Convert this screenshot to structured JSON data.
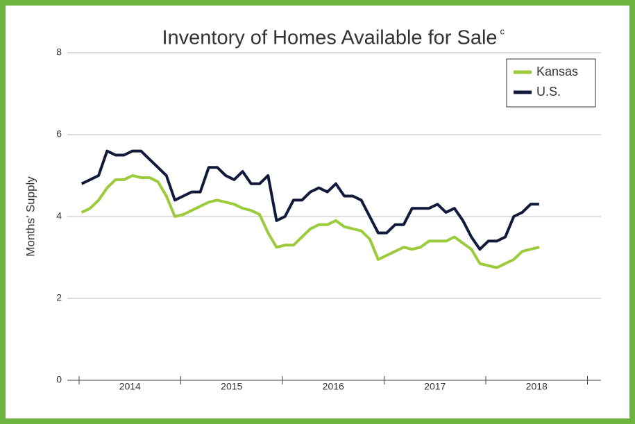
{
  "chart_data": {
    "type": "line",
    "title": "Inventory of Homes Available for Sale",
    "title_note": "c",
    "y_label": "Months’ Supply",
    "categories": [
      null,
      null,
      null,
      null,
      null,
      null,
      null,
      null,
      null,
      null,
      null,
      null,
      null,
      null,
      null,
      null,
      null,
      null,
      null,
      null,
      null,
      null,
      null,
      null,
      null,
      null,
      null,
      null,
      null,
      null,
      null,
      null,
      null,
      null,
      null,
      null,
      null,
      null,
      null,
      null,
      null,
      null,
      null,
      null,
      null,
      null,
      null,
      null,
      null,
      null,
      null,
      null,
      null,
      null,
      null
    ],
    "year_labels": [
      "2014",
      "2015",
      "2016",
      "2017",
      "2018"
    ],
    "series": [
      {
        "name": "Kansas",
        "color": "#9bcb3b",
        "values": [
          4.1,
          4.2,
          4.4,
          4.7,
          4.9,
          4.9,
          5.0,
          4.95,
          4.95,
          4.85,
          4.5,
          4.0,
          4.05,
          4.15,
          4.25,
          4.35,
          4.4,
          4.35,
          4.3,
          4.2,
          4.15,
          4.05,
          3.6,
          3.25,
          3.3,
          3.3,
          3.5,
          3.7,
          3.8,
          3.8,
          3.9,
          3.75,
          3.7,
          3.65,
          3.45,
          2.95,
          3.05,
          3.15,
          3.25,
          3.2,
          3.25,
          3.4,
          3.4,
          3.4,
          3.5,
          3.35,
          3.2,
          2.85,
          2.8,
          2.75,
          2.85,
          2.95,
          3.15,
          3.2,
          3.25
        ]
      },
      {
        "name": "U.S.",
        "color": "#111a3b",
        "values": [
          4.8,
          4.9,
          5.0,
          5.6,
          5.5,
          5.5,
          5.6,
          5.6,
          5.4,
          5.2,
          5.0,
          4.4,
          4.5,
          4.6,
          4.6,
          5.2,
          5.2,
          5.0,
          4.9,
          5.1,
          4.8,
          4.8,
          5.0,
          3.9,
          4.0,
          4.4,
          4.4,
          4.6,
          4.7,
          4.6,
          4.8,
          4.5,
          4.5,
          4.4,
          4.0,
          3.6,
          3.6,
          3.8,
          3.8,
          4.2,
          4.2,
          4.2,
          4.3,
          4.1,
          4.2,
          3.9,
          3.5,
          3.2,
          3.4,
          3.4,
          3.5,
          4.0,
          4.1,
          4.3,
          4.3
        ]
      }
    ],
    "ylim": [
      0,
      8
    ],
    "yticks": [
      0,
      2,
      4,
      6,
      8
    ],
    "grid": true,
    "legend": "top-right"
  }
}
